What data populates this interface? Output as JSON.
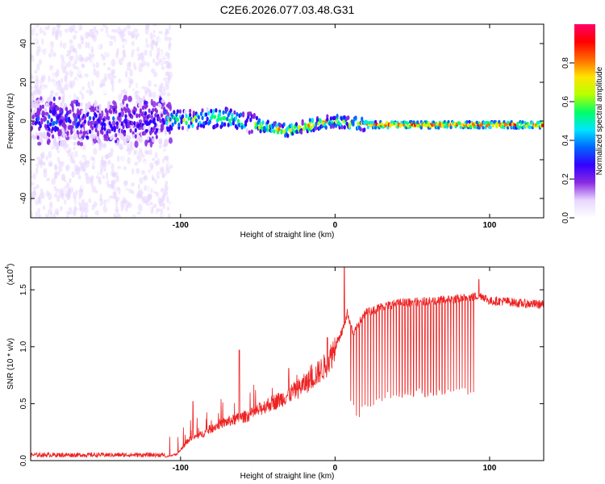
{
  "title": "C2E6.2026.077.03.48.G31",
  "chart_data": [
    {
      "type": "heatmap",
      "title": "C2E6.2026.077.03.48.G31",
      "xlabel": "Height of straight line (km)",
      "ylabel": "Frequency (Hz)",
      "xlim": [
        -197,
        135
      ],
      "ylim": [
        -50,
        50
      ],
      "x_ticks": [
        -100,
        0,
        100
      ],
      "x_tick_labels": [
        "-100",
        "0",
        "100"
      ],
      "y_ticks": [
        -40,
        -20,
        0,
        20,
        40
      ],
      "y_tick_labels": [
        "-40",
        "-20",
        "0",
        "20",
        "40"
      ],
      "colorbar": {
        "label": "Normalized spectral amplitude",
        "range": [
          0,
          1
        ],
        "ticks": [
          0,
          0.2,
          0.4,
          0.6,
          0.8
        ],
        "tick_labels": [
          "0.0",
          "0.2",
          "0.4",
          "0.6",
          "0.8"
        ],
        "colormap": [
          "#ffffff",
          "#e7d6ff",
          "#8a2be2",
          "#3300ff",
          "#0066ff",
          "#00e5ff",
          "#00ff66",
          "#b8ff00",
          "#ffe400",
          "#ff6a00",
          "#ff0000",
          "#ff0066"
        ]
      },
      "ridge_frequency_hz": [
        [
          -197,
          0
        ],
        [
          -110,
          0
        ],
        [
          -100,
          0
        ],
        [
          -90,
          1
        ],
        [
          -75,
          2
        ],
        [
          -60,
          0
        ],
        [
          -50,
          -2
        ],
        [
          -40,
          -4
        ],
        [
          -30,
          -5
        ],
        [
          -20,
          -3
        ],
        [
          -10,
          -1
        ],
        [
          0,
          0
        ],
        [
          10,
          -1
        ],
        [
          20,
          -2
        ],
        [
          40,
          -2
        ],
        [
          80,
          -2
        ],
        [
          135,
          -2
        ]
      ],
      "noise_region_km": [
        -197,
        -110
      ]
    },
    {
      "type": "line",
      "xlabel": "Height of straight line (km)",
      "ylabel": "SNR (10 * v/v)",
      "y_scale_label": "(x10",
      "y_scale_exponent": "4",
      "xlim": [
        -197,
        135
      ],
      "ylim": [
        0,
        1.7
      ],
      "x_ticks": [
        -100,
        0,
        100
      ],
      "x_tick_labels": [
        "-100",
        "0",
        "100"
      ],
      "y_ticks": [
        0,
        0.5,
        1.0,
        1.5
      ],
      "y_tick_labels": [
        "0.0",
        "0.5",
        "1.0",
        "1.5"
      ],
      "color": "#ee2222",
      "envelope": [
        [
          -197,
          0.03
        ],
        [
          -110,
          0.03
        ],
        [
          -102,
          0.06
        ],
        [
          -95,
          0.18
        ],
        [
          -85,
          0.24
        ],
        [
          -75,
          0.32
        ],
        [
          -65,
          0.36
        ],
        [
          -55,
          0.4
        ],
        [
          -45,
          0.48
        ],
        [
          -35,
          0.54
        ],
        [
          -25,
          0.62
        ],
        [
          -15,
          0.72
        ],
        [
          -5,
          0.85
        ],
        [
          0,
          1.0
        ],
        [
          5,
          1.15
        ],
        [
          8,
          1.3
        ],
        [
          12,
          1.1
        ],
        [
          15,
          1.2
        ],
        [
          20,
          1.3
        ],
        [
          30,
          1.35
        ],
        [
          40,
          1.38
        ],
        [
          60,
          1.4
        ],
        [
          80,
          1.42
        ],
        [
          90,
          1.44
        ],
        [
          95,
          1.45
        ],
        [
          100,
          1.4
        ],
        [
          110,
          1.4
        ],
        [
          120,
          1.38
        ],
        [
          135,
          1.37
        ]
      ],
      "spikes": [
        [
          -92,
          0.52
        ],
        [
          -62,
          0.97
        ],
        [
          -30,
          0.81
        ],
        [
          -5,
          1.08
        ],
        [
          6,
          1.75
        ],
        [
          93,
          1.59
        ]
      ],
      "dip_region_km": [
        10,
        90
      ],
      "dip_floor": [
        [
          10,
          0.45
        ],
        [
          15,
          0.35
        ],
        [
          20,
          0.45
        ],
        [
          30,
          0.52
        ],
        [
          50,
          0.56
        ],
        [
          70,
          0.56
        ],
        [
          90,
          0.56
        ]
      ]
    }
  ]
}
